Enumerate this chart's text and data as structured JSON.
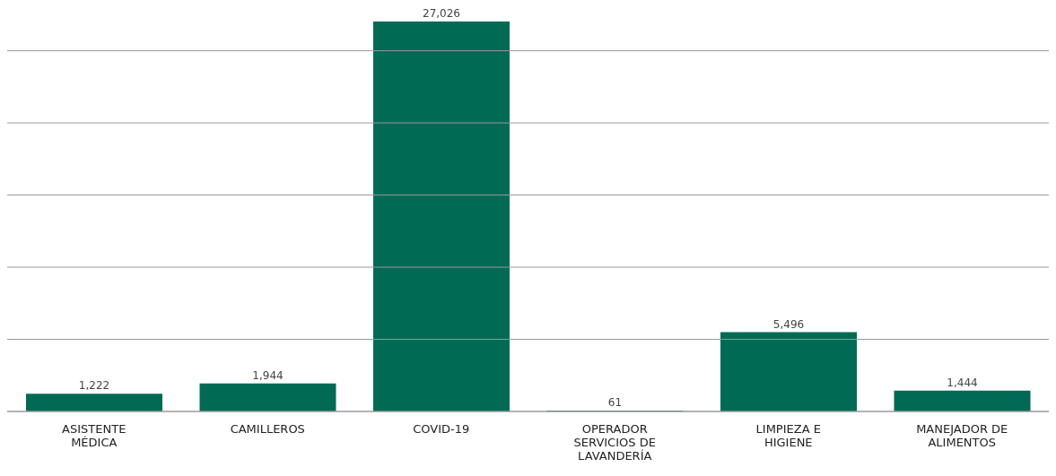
{
  "chart_data": {
    "type": "bar",
    "categories": [
      "ASISTENTE MÉDICA",
      "CAMILLEROS",
      "COVID-19",
      "OPERADOR SERVICIOS DE LAVANDERÍA",
      "LIMPIEZA E HIGIENE",
      "MANEJADOR DE ALIMENTOS"
    ],
    "values": [
      1222,
      1944,
      27026,
      61,
      5496,
      1444
    ],
    "color": "#006a55",
    "yticks": [
      {
        "value": 0,
        "label": null
      },
      {
        "value": 5000,
        "label": null
      },
      {
        "value": 10000,
        "label": null
      },
      {
        "value": 15000,
        "label": null
      },
      {
        "value": 20000,
        "label": null
      },
      {
        "value": 25000,
        "label": null
      }
    ],
    "value_labels": [
      "1,222",
      "1,944",
      "27,026",
      "61",
      "5,496",
      "1,444"
    ],
    "grid": "y",
    "tick_labels": "x"
  }
}
